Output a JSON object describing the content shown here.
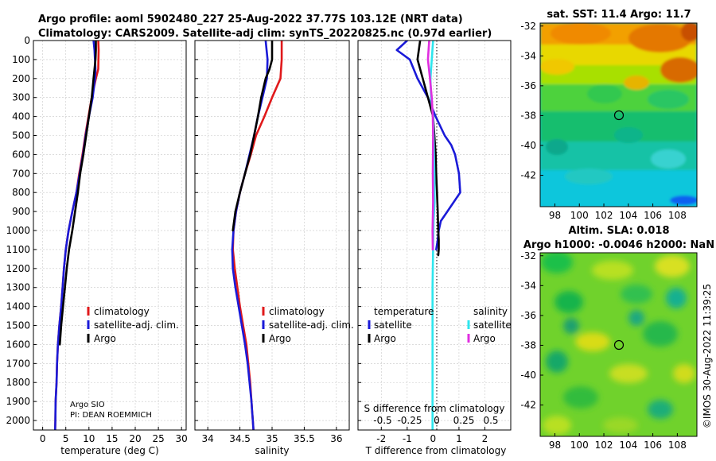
{
  "header": {
    "line1": "Argo profile: aoml 5902480_227 25-Aug-2022 37.77S 103.12E (NRT data)",
    "line2": "Climatology: CARS2009. Satellite-adj clim: synTS_20220825.nc (0.97d earlier)"
  },
  "colors": {
    "climatology": "#e0191b",
    "satellite_adj": "#1a1ad8",
    "argo": "#000000",
    "sat_s": "#2ee6ee",
    "argo_s": "#e02ee0",
    "grid": "#c8c8c8"
  },
  "depth_axis": {
    "min": 0,
    "max": 2050,
    "ticks": [
      0,
      100,
      200,
      300,
      400,
      500,
      600,
      700,
      800,
      900,
      1000,
      1100,
      1200,
      1300,
      1400,
      1500,
      1600,
      1700,
      1800,
      1900,
      2000
    ]
  },
  "credit": {
    "line1": "Argo SIO",
    "line2": "PI: DEAN ROEMMICH"
  },
  "chart_data": [
    {
      "type": "line",
      "id": "temperature",
      "xlabel": "temperature (deg C)",
      "xlim": [
        -2,
        31
      ],
      "xticks": [
        0,
        5,
        10,
        15,
        20,
        25,
        30
      ],
      "ylim": [
        2050,
        0
      ],
      "legend": [
        "climatology",
        "satellite-adj. clim.",
        "Argo"
      ],
      "series": [
        {
          "name": "climatology",
          "color": "#e0191b",
          "x": [
            12.0,
            12.1,
            12.0,
            11.5,
            10.6,
            9.9,
            9.2,
            8.6,
            7.9,
            7.3,
            6.4,
            5.6,
            5.0,
            4.6,
            4.3,
            4.0,
            3.6,
            3.3,
            3.1,
            3.0,
            2.8,
            2.75,
            2.7
          ],
          "y": [
            0,
            50,
            150,
            200,
            300,
            400,
            500,
            600,
            700,
            800,
            900,
            1000,
            1100,
            1200,
            1300,
            1400,
            1500,
            1600,
            1700,
            1800,
            1900,
            2000,
            2050
          ]
        },
        {
          "name": "satellite-adj. clim.",
          "color": "#1a1ad8",
          "x": [
            11.0,
            11.2,
            11.4,
            11.3,
            10.8,
            10.0,
            9.3,
            8.7,
            8.0,
            7.3,
            6.4,
            5.6,
            5.0,
            4.6,
            4.3,
            4.0,
            3.6,
            3.3,
            3.1,
            3.0,
            2.8,
            2.75,
            2.7
          ],
          "y": [
            0,
            50,
            150,
            200,
            300,
            400,
            500,
            600,
            700,
            800,
            900,
            1000,
            1100,
            1200,
            1300,
            1400,
            1500,
            1600,
            1700,
            1800,
            1900,
            2000,
            2050
          ]
        },
        {
          "name": "Argo",
          "color": "#000000",
          "x": [
            11.5,
            11.5,
            11.4,
            11.2,
            11.0,
            10.6,
            10.0,
            9.4,
            8.8,
            8.1,
            7.6,
            7.0,
            6.4,
            5.7,
            5.2,
            4.8,
            4.4,
            4.0,
            3.7
          ],
          "y": [
            0,
            50,
            100,
            150,
            200,
            300,
            400,
            500,
            600,
            700,
            800,
            900,
            1000,
            1100,
            1200,
            1300,
            1400,
            1500,
            1600
          ]
        }
      ]
    },
    {
      "type": "line",
      "id": "salinity",
      "xlabel": "salinity",
      "xlim": [
        33.8,
        36.2
      ],
      "xticks": [
        34,
        34.5,
        35,
        35.5,
        36
      ],
      "xtick_labels": [
        "34",
        "34.5",
        "35",
        "35.5",
        "36"
      ],
      "ylim": [
        2050,
        0
      ],
      "legend": [
        "climatology",
        "satellite-adj. clim.",
        "Argo"
      ],
      "series": [
        {
          "name": "climatology",
          "color": "#e0191b",
          "x": [
            35.15,
            35.15,
            35.13,
            35.0,
            34.88,
            34.75,
            34.67,
            34.58,
            34.5,
            34.44,
            34.4,
            34.39,
            34.42,
            34.46,
            34.5,
            34.55,
            34.6,
            34.63,
            34.66,
            34.68,
            34.69,
            34.7,
            34.71
          ],
          "y": [
            0,
            100,
            200,
            300,
            400,
            500,
            600,
            700,
            800,
            900,
            1000,
            1100,
            1200,
            1300,
            1400,
            1500,
            1600,
            1700,
            1800,
            1900,
            1950,
            2000,
            2050
          ]
        },
        {
          "name": "satellite-adj. clim.",
          "color": "#1a1ad8",
          "x": [
            34.9,
            34.93,
            34.92,
            34.85,
            34.78,
            34.72,
            34.65,
            34.58,
            34.5,
            34.44,
            34.4,
            34.38,
            34.39,
            34.43,
            34.48,
            34.53,
            34.58,
            34.62,
            34.65,
            34.68,
            34.69,
            34.7,
            34.71
          ],
          "y": [
            0,
            100,
            200,
            300,
            400,
            500,
            600,
            700,
            800,
            900,
            1000,
            1100,
            1200,
            1300,
            1400,
            1500,
            1600,
            1700,
            1800,
            1900,
            1950,
            2000,
            2050
          ]
        },
        {
          "name": "Argo",
          "color": "#000000",
          "x": [
            35.0,
            35.0,
            34.96,
            34.9,
            34.83,
            34.78,
            34.72,
            34.66,
            34.58,
            34.5,
            34.43,
            34.39
          ],
          "y": [
            0,
            100,
            150,
            200,
            300,
            400,
            500,
            600,
            700,
            800,
            900,
            1000
          ]
        }
      ]
    },
    {
      "type": "line",
      "id": "differences",
      "xlabel": "T difference from climatology",
      "xlabel2": "S difference from climatology",
      "xlim": [
        -2.9,
        3.0
      ],
      "xticks": [
        -2,
        -1,
        0,
        1,
        2
      ],
      "s_ticks": [
        -0.5,
        -0.25,
        0,
        0.25,
        0.5
      ],
      "s_tick_labels": [
        "-0.5",
        "-0.25",
        "0",
        "0.25",
        "0.5"
      ],
      "ylim": [
        2050,
        0
      ],
      "legend_temperature": {
        "title": "temperature",
        "items": [
          "satellite",
          "Argo"
        ]
      },
      "legend_salinity": {
        "title": "salinity",
        "items": [
          "satellite",
          "Argo"
        ]
      },
      "series": [
        {
          "name": "satellite T",
          "color": "#1a1ad8",
          "x": [
            -1.0,
            -1.4,
            -0.9,
            -0.6,
            -0.2,
            0.1,
            0.45,
            0.7,
            0.85,
            1.0,
            1.05,
            0.55,
            0.3,
            0.22,
            0.18,
            0.12
          ],
          "y": [
            0,
            50,
            100,
            200,
            300,
            400,
            500,
            550,
            600,
            700,
            800,
            900,
            950,
            1000,
            1050,
            1100
          ]
        },
        {
          "name": "Argo T",
          "color": "#000000",
          "x": [
            -0.5,
            -0.6,
            -0.4,
            -0.2,
            0.0,
            0.05,
            0.1,
            0.12,
            0.15,
            0.18,
            0.2,
            0.22,
            0.22,
            0.2
          ],
          "y": [
            0,
            100,
            200,
            300,
            400,
            500,
            600,
            700,
            800,
            900,
            1000,
            1050,
            1100,
            1130
          ]
        },
        {
          "name": "satellite S",
          "color": "#2ee6ee",
          "x": [
            0.0,
            -0.05,
            -0.1,
            -0.08,
            0.0,
            0.02,
            0.05,
            0.06,
            0.02,
            0.0,
            -0.02,
            -0.02,
            -0.02,
            -0.02
          ],
          "y": [
            0,
            100,
            200,
            300,
            400,
            500,
            700,
            850,
            950,
            1100,
            1300,
            1600,
            1900,
            2050
          ]
        },
        {
          "name": "Argo S",
          "color": "#e02ee0",
          "x": [
            -0.15,
            -0.2,
            -0.12,
            -0.05,
            -0.01,
            0.0,
            -0.01,
            0.0,
            -0.02,
            -0.01
          ],
          "y": [
            0,
            100,
            200,
            300,
            400,
            500,
            700,
            850,
            1000,
            1100
          ]
        }
      ]
    },
    {
      "type": "heatmap",
      "id": "sst-map",
      "title": "sat. SST: 11.4  Argo: 11.7",
      "xticks": [
        98,
        100,
        102,
        104,
        106,
        108
      ],
      "yticks": [
        -32,
        -34,
        -36,
        -38,
        -40,
        -42
      ],
      "xlim": [
        96.8,
        109.6
      ],
      "ylim": [
        -44.1,
        -31.8
      ],
      "profile_marker": {
        "lon": 103.12,
        "lat": -37.77
      }
    },
    {
      "type": "heatmap",
      "id": "sla-map",
      "title": "Altim. SLA: 0.018",
      "subtitle": "Argo h1000: -0.0046  h2000: NaN",
      "xticks": [
        98,
        100,
        102,
        104,
        106,
        108
      ],
      "yticks": [
        -32,
        -34,
        -36,
        -38,
        -40,
        -42
      ],
      "xlim": [
        96.8,
        109.6
      ],
      "ylim": [
        -44.1,
        -31.8
      ],
      "profile_marker": {
        "lon": 103.12,
        "lat": -37.77
      }
    }
  ],
  "watermark": "©IMOS 30-Aug-2022 11:39:25"
}
